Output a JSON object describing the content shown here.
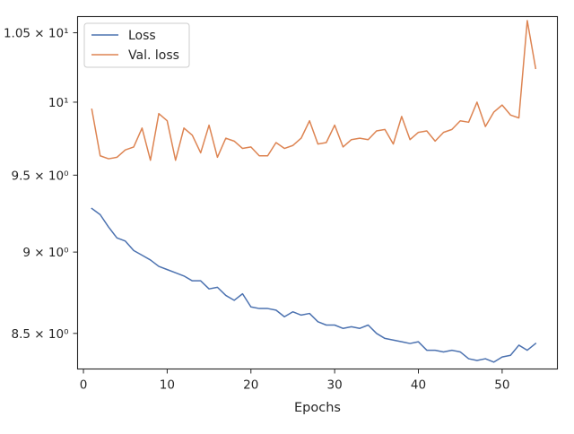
{
  "chart_data": {
    "type": "line",
    "title": "",
    "xlabel": "Epochs",
    "ylabel": "",
    "yscale": "log",
    "xlim": [
      -0.7,
      56.6
    ],
    "ylim": [
      8.29,
      10.62
    ],
    "grid": false,
    "legend_position": "top-left",
    "xticks": [
      {
        "value": 0,
        "label": "0"
      },
      {
        "value": 10,
        "label": "10"
      },
      {
        "value": 20,
        "label": "20"
      },
      {
        "value": 30,
        "label": "30"
      },
      {
        "value": 40,
        "label": "40"
      },
      {
        "value": 50,
        "label": "50"
      }
    ],
    "yticks": [
      {
        "value": 8.5,
        "label": "8.5 × 10⁰"
      },
      {
        "value": 9.0,
        "label": "9 × 10⁰"
      },
      {
        "value": 9.5,
        "label": "9.5 × 10⁰"
      },
      {
        "value": 10.0,
        "label": "10¹"
      },
      {
        "value": 10.5,
        "label": "1.05 × 10¹"
      }
    ],
    "x": [
      1,
      2,
      3,
      4,
      5,
      6,
      7,
      8,
      9,
      10,
      11,
      12,
      13,
      14,
      15,
      16,
      17,
      18,
      19,
      20,
      21,
      22,
      23,
      24,
      25,
      26,
      27,
      28,
      29,
      30,
      31,
      32,
      33,
      34,
      35,
      36,
      37,
      38,
      39,
      40,
      41,
      42,
      43,
      44,
      45,
      46,
      47,
      48,
      49,
      50,
      51,
      52,
      53,
      54
    ],
    "series": [
      {
        "name": "Loss",
        "color": "#4c72b0",
        "values": [
          9.28,
          9.24,
          9.16,
          9.09,
          9.07,
          9.01,
          8.98,
          8.95,
          8.91,
          8.89,
          8.87,
          8.85,
          8.82,
          8.82,
          8.77,
          8.78,
          8.73,
          8.7,
          8.74,
          8.66,
          8.65,
          8.65,
          8.64,
          8.6,
          8.63,
          8.61,
          8.62,
          8.57,
          8.55,
          8.55,
          8.53,
          8.54,
          8.53,
          8.55,
          8.5,
          8.47,
          8.46,
          8.45,
          8.44,
          8.45,
          8.4,
          8.4,
          8.39,
          8.4,
          8.39,
          8.35,
          8.34,
          8.35,
          8.33,
          8.36,
          8.37,
          8.43,
          8.4,
          8.44
        ]
      },
      {
        "name": "Val. loss",
        "color": "#dd8452",
        "values": [
          9.95,
          9.63,
          9.61,
          9.62,
          9.67,
          9.69,
          9.82,
          9.6,
          9.92,
          9.87,
          9.6,
          9.82,
          9.77,
          9.65,
          9.84,
          9.62,
          9.75,
          9.73,
          9.68,
          9.69,
          9.63,
          9.63,
          9.72,
          9.68,
          9.7,
          9.75,
          9.87,
          9.71,
          9.72,
          9.84,
          9.69,
          9.74,
          9.75,
          9.74,
          9.8,
          9.81,
          9.71,
          9.9,
          9.74,
          9.79,
          9.8,
          9.73,
          9.79,
          9.81,
          9.87,
          9.86,
          10.0,
          9.83,
          9.93,
          9.98,
          9.91,
          9.89,
          10.59,
          10.24
        ]
      }
    ]
  }
}
